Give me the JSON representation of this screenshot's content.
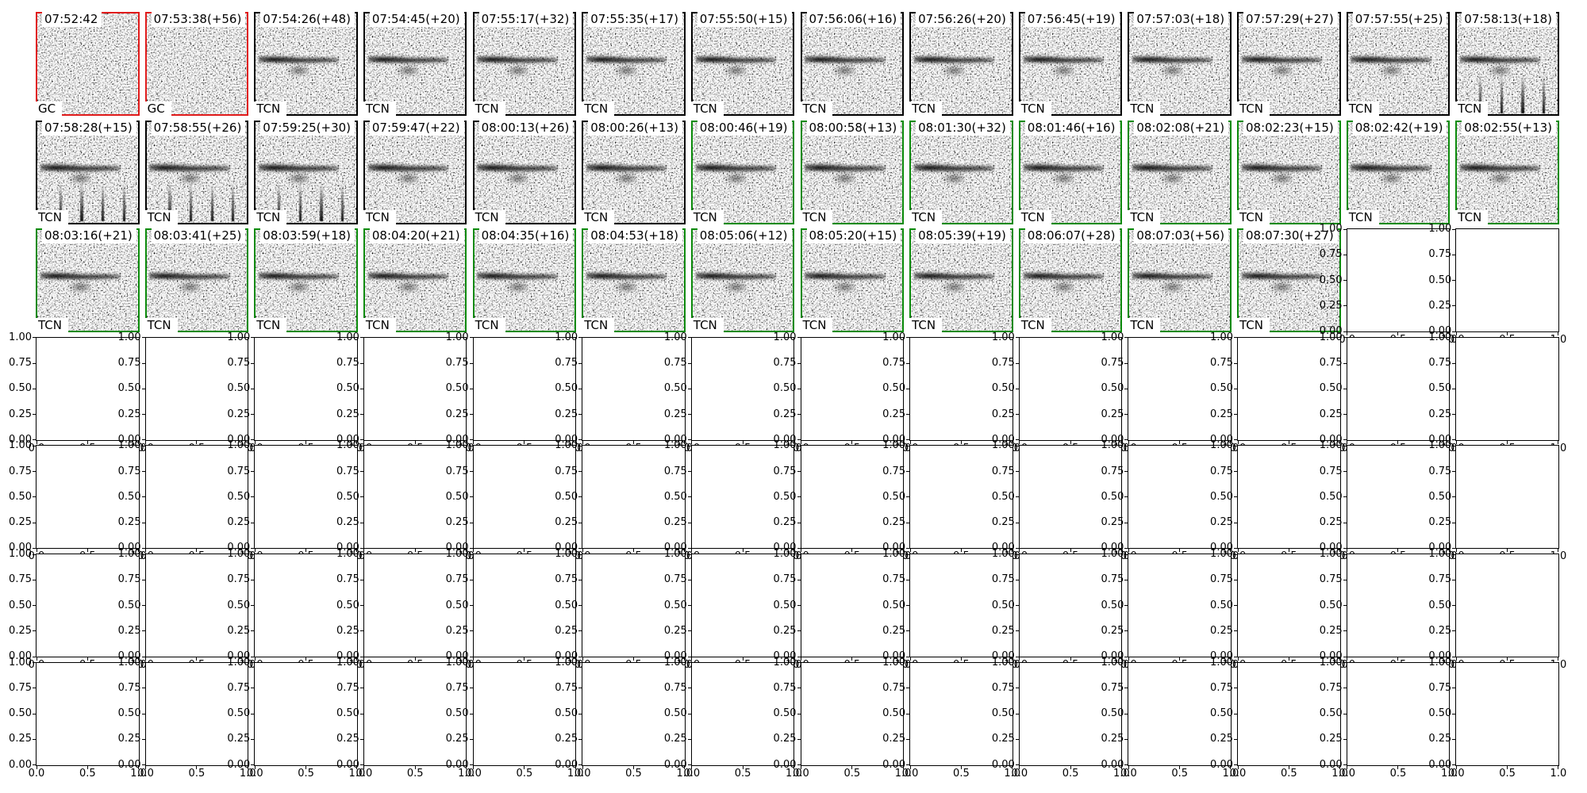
{
  "figure": {
    "kind": "spectrogram-review-grid"
  },
  "colors": {
    "black": "#000000",
    "red": "#e01a1a",
    "green": "#0a8a0a",
    "spine": "#000000"
  },
  "chart_data": {
    "type": "heatmap",
    "description": "Grid of 40 noisy spectrogram detection thumbnails (3 rows) above 4 rows of empty 0-1 axes",
    "axes": {
      "y_ticks": [
        "1.00",
        "0.75",
        "0.50",
        "0.25",
        "0.00"
      ],
      "x_ticks": [
        "0.0",
        "0.5",
        "1.0"
      ],
      "ylim": [
        0,
        1
      ],
      "xlim": [
        0,
        1
      ]
    },
    "image_panels": [
      {
        "row": 0,
        "col": 0,
        "title": "07:52:42",
        "label": "GC",
        "border": "red",
        "band": false,
        "spikes": false
      },
      {
        "row": 0,
        "col": 1,
        "title": "07:53:38(+56)",
        "label": "GC",
        "border": "red",
        "band": false,
        "spikes": false
      },
      {
        "row": 0,
        "col": 2,
        "title": "07:54:26(+48)",
        "label": "TCN",
        "border": "black",
        "band": true,
        "spikes": false
      },
      {
        "row": 0,
        "col": 3,
        "title": "07:54:45(+20)",
        "label": "TCN",
        "border": "black",
        "band": true,
        "spikes": false
      },
      {
        "row": 0,
        "col": 4,
        "title": "07:55:17(+32)",
        "label": "TCN",
        "border": "black",
        "band": true,
        "spikes": false
      },
      {
        "row": 0,
        "col": 5,
        "title": "07:55:35(+17)",
        "label": "TCN",
        "border": "black",
        "band": true,
        "spikes": false
      },
      {
        "row": 0,
        "col": 6,
        "title": "07:55:50(+15)",
        "label": "TCN",
        "border": "black",
        "band": true,
        "spikes": false
      },
      {
        "row": 0,
        "col": 7,
        "title": "07:56:06(+16)",
        "label": "TCN",
        "border": "black",
        "band": true,
        "spikes": false
      },
      {
        "row": 0,
        "col": 8,
        "title": "07:56:26(+20)",
        "label": "TCN",
        "border": "black",
        "band": true,
        "spikes": false
      },
      {
        "row": 0,
        "col": 9,
        "title": "07:56:45(+19)",
        "label": "TCN",
        "border": "black",
        "band": true,
        "spikes": false
      },
      {
        "row": 0,
        "col": 10,
        "title": "07:57:03(+18)",
        "label": "TCN",
        "border": "black",
        "band": true,
        "spikes": false
      },
      {
        "row": 0,
        "col": 11,
        "title": "07:57:29(+27)",
        "label": "TCN",
        "border": "black",
        "band": true,
        "spikes": false
      },
      {
        "row": 0,
        "col": 12,
        "title": "07:57:55(+25)",
        "label": "TCN",
        "border": "black",
        "band": true,
        "spikes": false
      },
      {
        "row": 0,
        "col": 13,
        "title": "07:58:13(+18)",
        "label": "TCN",
        "border": "black",
        "band": true,
        "spikes": true
      },
      {
        "row": 1,
        "col": 0,
        "title": "07:58:28(+15)",
        "label": "TCN",
        "border": "black",
        "band": true,
        "spikes": true
      },
      {
        "row": 1,
        "col": 1,
        "title": "07:58:55(+26)",
        "label": "TCN",
        "border": "black",
        "band": true,
        "spikes": true
      },
      {
        "row": 1,
        "col": 2,
        "title": "07:59:25(+30)",
        "label": "TCN",
        "border": "black",
        "band": true,
        "spikes": true
      },
      {
        "row": 1,
        "col": 3,
        "title": "07:59:47(+22)",
        "label": "TCN",
        "border": "black",
        "band": true,
        "spikes": false
      },
      {
        "row": 1,
        "col": 4,
        "title": "08:00:13(+26)",
        "label": "TCN",
        "border": "black",
        "band": true,
        "spikes": false
      },
      {
        "row": 1,
        "col": 5,
        "title": "08:00:26(+13)",
        "label": "TCN",
        "border": "black",
        "band": true,
        "spikes": false
      },
      {
        "row": 1,
        "col": 6,
        "title": "08:00:46(+19)",
        "label": "TCN",
        "border": "green",
        "band": true,
        "spikes": false
      },
      {
        "row": 1,
        "col": 7,
        "title": "08:00:58(+13)",
        "label": "TCN",
        "border": "green",
        "band": true,
        "spikes": false
      },
      {
        "row": 1,
        "col": 8,
        "title": "08:01:30(+32)",
        "label": "TCN",
        "border": "green",
        "band": true,
        "spikes": false
      },
      {
        "row": 1,
        "col": 9,
        "title": "08:01:46(+16)",
        "label": "TCN",
        "border": "green",
        "band": true,
        "spikes": false
      },
      {
        "row": 1,
        "col": 10,
        "title": "08:02:08(+21)",
        "label": "TCN",
        "border": "green",
        "band": true,
        "spikes": false
      },
      {
        "row": 1,
        "col": 11,
        "title": "08:02:23(+15)",
        "label": "TCN",
        "border": "green",
        "band": true,
        "spikes": false
      },
      {
        "row": 1,
        "col": 12,
        "title": "08:02:42(+19)",
        "label": "TCN",
        "border": "green",
        "band": true,
        "spikes": false
      },
      {
        "row": 1,
        "col": 13,
        "title": "08:02:55(+13)",
        "label": "TCN",
        "border": "green",
        "band": true,
        "spikes": false
      },
      {
        "row": 2,
        "col": 0,
        "title": "08:03:16(+21)",
        "label": "TCN",
        "border": "green",
        "band": true,
        "spikes": false
      },
      {
        "row": 2,
        "col": 1,
        "title": "08:03:41(+25)",
        "label": "TCN",
        "border": "green",
        "band": true,
        "spikes": false
      },
      {
        "row": 2,
        "col": 2,
        "title": "08:03:59(+18)",
        "label": "TCN",
        "border": "green",
        "band": true,
        "spikes": false
      },
      {
        "row": 2,
        "col": 3,
        "title": "08:04:20(+21)",
        "label": "TCN",
        "border": "green",
        "band": true,
        "spikes": false
      },
      {
        "row": 2,
        "col": 4,
        "title": "08:04:35(+16)",
        "label": "TCN",
        "border": "green",
        "band": true,
        "spikes": false
      },
      {
        "row": 2,
        "col": 5,
        "title": "08:04:53(+18)",
        "label": "TCN",
        "border": "green",
        "band": true,
        "spikes": false
      },
      {
        "row": 2,
        "col": 6,
        "title": "08:05:06(+12)",
        "label": "TCN",
        "border": "green",
        "band": true,
        "spikes": false
      },
      {
        "row": 2,
        "col": 7,
        "title": "08:05:20(+15)",
        "label": "TCN",
        "border": "green",
        "band": true,
        "spikes": false
      },
      {
        "row": 2,
        "col": 8,
        "title": "08:05:39(+19)",
        "label": "TCN",
        "border": "green",
        "band": true,
        "spikes": false
      },
      {
        "row": 2,
        "col": 9,
        "title": "08:06:07(+28)",
        "label": "TCN",
        "border": "green",
        "band": true,
        "spikes": false
      },
      {
        "row": 2,
        "col": 10,
        "title": "08:07:03(+56)",
        "label": "TCN",
        "border": "green",
        "band": true,
        "spikes": false
      },
      {
        "row": 2,
        "col": 11,
        "title": "08:07:30(+27)",
        "label": "TCN",
        "border": "green",
        "band": true,
        "spikes": false
      }
    ],
    "empty_cells": {
      "cells": [
        [
          2,
          12
        ],
        [
          2,
          13
        ]
      ],
      "full_rows": [
        3,
        4,
        5,
        6
      ]
    }
  }
}
